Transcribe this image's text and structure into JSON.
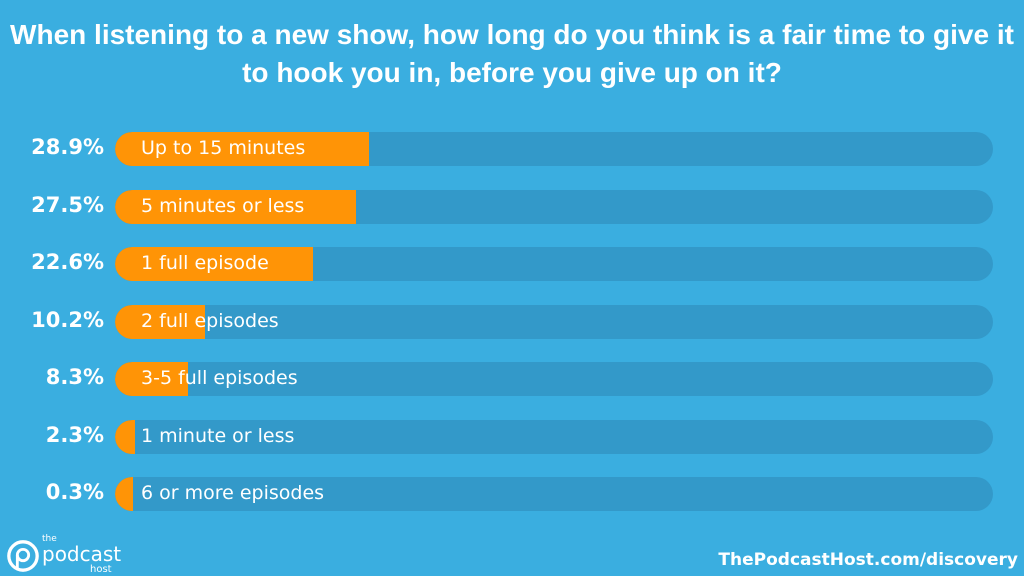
{
  "chart_data": {
    "type": "bar",
    "orientation": "horizontal",
    "title": "When listening to a new show, how long do you think is a fair time to give it to hook you in, before you give up on it?",
    "categories": [
      "Up to 15 minutes",
      "5 minutes or less",
      "1 full episode",
      "2 full episodes",
      "3-5 full episodes",
      "1 minute or less",
      "6 or more episodes"
    ],
    "values": [
      28.9,
      27.5,
      22.6,
      10.2,
      8.3,
      2.3,
      0.3
    ],
    "value_labels": [
      "28.9%",
      "27.5%",
      "22.6%",
      "10.2%",
      "8.3%",
      "2.3%",
      "0.3%"
    ],
    "xlim": [
      0,
      100
    ],
    "grid": false,
    "colors": {
      "background": "#3aaee0",
      "track": "#3399c9",
      "bar": "#ff9406"
    }
  },
  "footer": {
    "logo_text": "the podcast host",
    "source": "ThePodcastHost.com/discovery"
  }
}
